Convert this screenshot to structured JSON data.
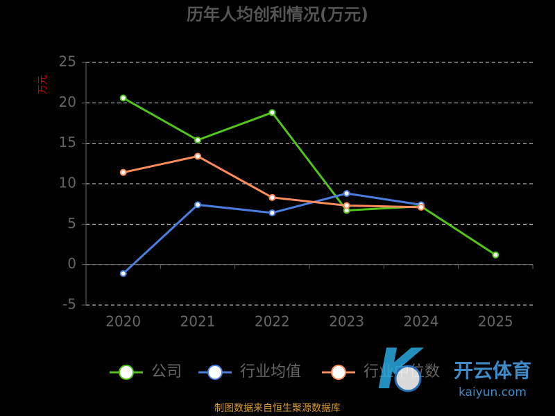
{
  "chart_data": {
    "type": "line",
    "title": "历年人均创利情况(万元)",
    "y_label": "万元",
    "categories": [
      "2020",
      "2021",
      "2022",
      "2023",
      "2024",
      "2025"
    ],
    "series": [
      {
        "name": "公司",
        "color": "#52c41a",
        "values": [
          20.6,
          15.4,
          18.8,
          6.7,
          7.2,
          1.2
        ]
      },
      {
        "name": "行业均值",
        "color": "#4a7fe0",
        "values": [
          -1.1,
          7.4,
          6.4,
          8.8,
          7.4,
          null
        ]
      },
      {
        "name": "行业中位数",
        "color": "#ff8c5a",
        "values": [
          11.4,
          13.4,
          8.3,
          7.3,
          7.1,
          null
        ]
      }
    ],
    "ylim": [
      -5,
      25
    ],
    "yticks": [
      -5,
      0,
      5,
      10,
      15,
      20,
      25
    ],
    "grid": true,
    "source": "制图数据来自恒生聚源数据库",
    "watermark": {
      "brand": "开云体育",
      "site": "kaiyun.com"
    }
  }
}
